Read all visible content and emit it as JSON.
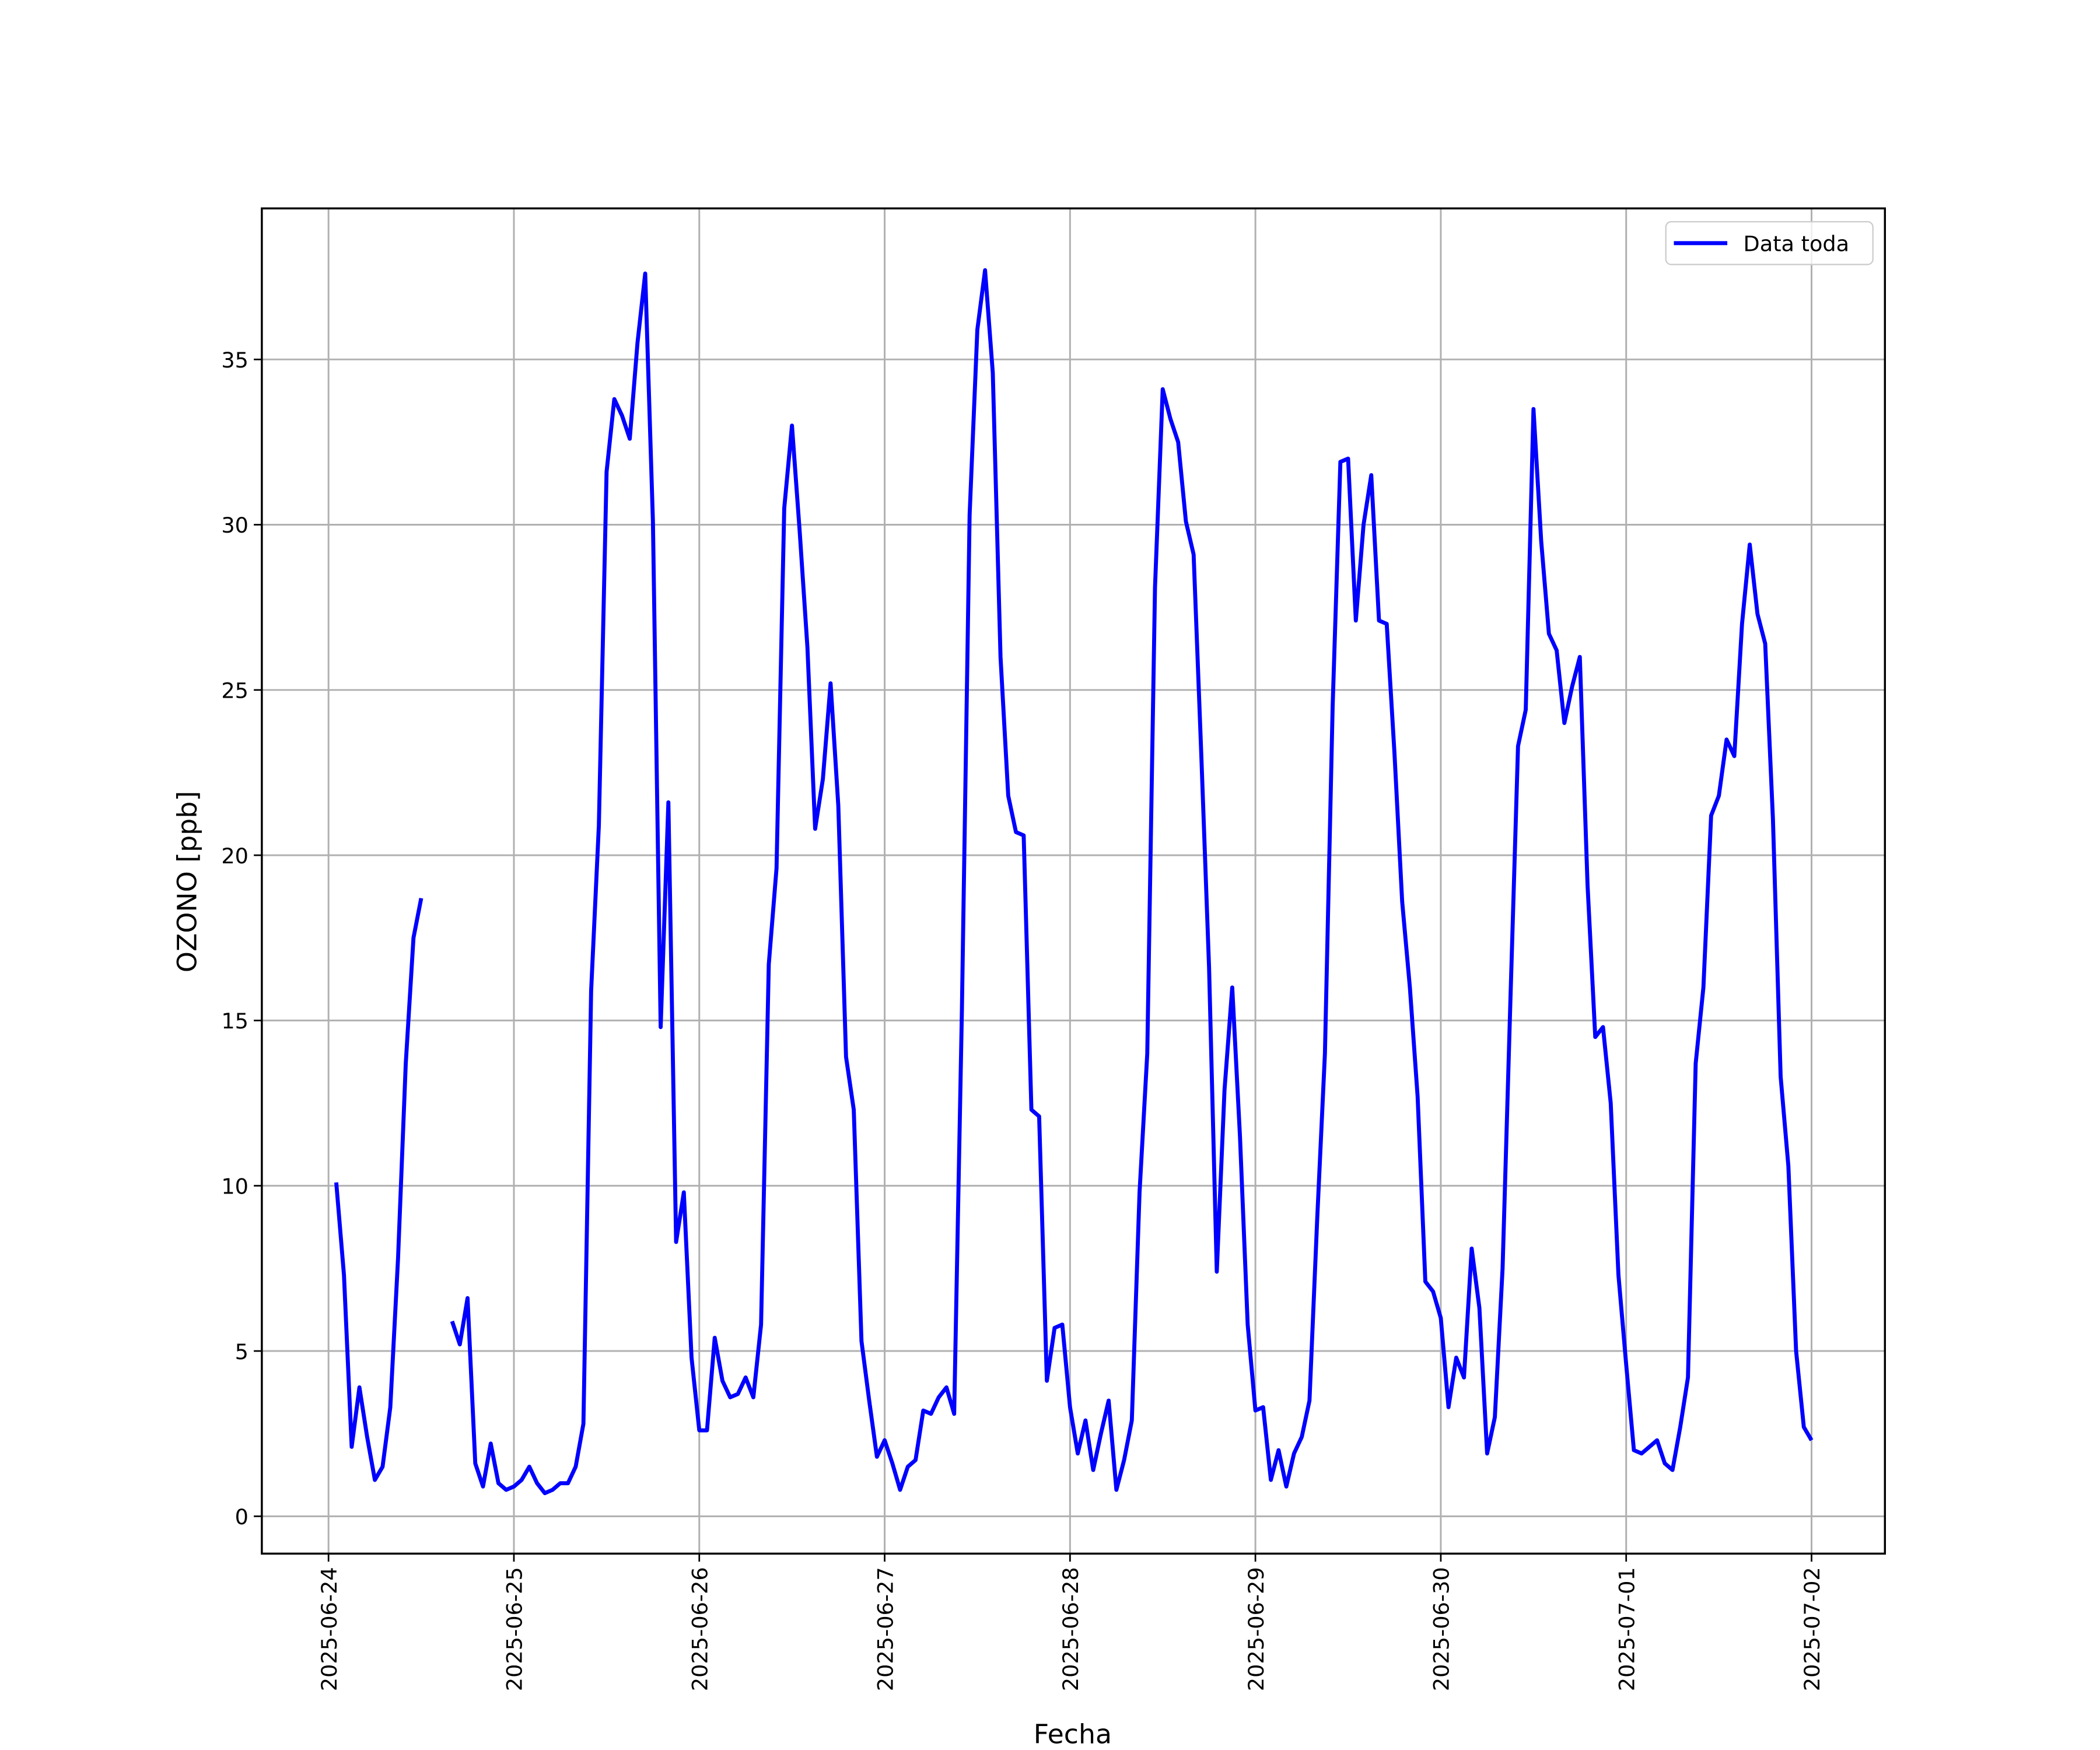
{
  "chart_data": {
    "type": "line",
    "xlabel": "Fecha",
    "ylabel": "OZONO [ppb]",
    "x": [
      "2025-06-24 01:00",
      "2025-06-24 02:00",
      "2025-06-24 03:00",
      "2025-06-24 04:00",
      "2025-06-24 05:00",
      "2025-06-24 06:00",
      "2025-06-24 07:00",
      "2025-06-24 08:00",
      "2025-06-24 09:00",
      "2025-06-24 10:00",
      "2025-06-24 11:00",
      "2025-06-24 12:00",
      "2025-06-24 13:00",
      "2025-06-24 14:00",
      "2025-06-24 15:00",
      "2025-06-24 16:00",
      "2025-06-24 17:00",
      "2025-06-24 18:00",
      "2025-06-24 19:00",
      "2025-06-24 20:00",
      "2025-06-24 21:00",
      "2025-06-24 22:00",
      "2025-06-24 23:00",
      "2025-06-25 00:00",
      "2025-06-25 01:00",
      "2025-06-25 02:00",
      "2025-06-25 03:00",
      "2025-06-25 04:00",
      "2025-06-25 05:00",
      "2025-06-25 06:00",
      "2025-06-25 07:00",
      "2025-06-25 08:00",
      "2025-06-25 09:00",
      "2025-06-25 10:00",
      "2025-06-25 11:00",
      "2025-06-25 12:00",
      "2025-06-25 13:00",
      "2025-06-25 14:00",
      "2025-06-25 15:00",
      "2025-06-25 16:00",
      "2025-06-25 17:00",
      "2025-06-25 18:00",
      "2025-06-25 19:00",
      "2025-06-25 20:00",
      "2025-06-25 21:00",
      "2025-06-25 22:00",
      "2025-06-25 23:00",
      "2025-06-26 00:00",
      "2025-06-26 01:00",
      "2025-06-26 02:00",
      "2025-06-26 03:00",
      "2025-06-26 04:00",
      "2025-06-26 05:00",
      "2025-06-26 06:00",
      "2025-06-26 07:00",
      "2025-06-26 08:00",
      "2025-06-26 09:00",
      "2025-06-26 10:00",
      "2025-06-26 11:00",
      "2025-06-26 12:00",
      "2025-06-26 13:00",
      "2025-06-26 14:00",
      "2025-06-26 15:00",
      "2025-06-26 16:00",
      "2025-06-26 17:00",
      "2025-06-26 18:00",
      "2025-06-26 19:00",
      "2025-06-26 20:00",
      "2025-06-26 21:00",
      "2025-06-26 22:00",
      "2025-06-26 23:00",
      "2025-06-27 00:00",
      "2025-06-27 01:00",
      "2025-06-27 02:00",
      "2025-06-27 03:00",
      "2025-06-27 04:00",
      "2025-06-27 05:00",
      "2025-06-27 06:00",
      "2025-06-27 07:00",
      "2025-06-27 08:00",
      "2025-06-27 09:00",
      "2025-06-27 10:00",
      "2025-06-27 11:00",
      "2025-06-27 12:00",
      "2025-06-27 13:00",
      "2025-06-27 14:00",
      "2025-06-27 15:00",
      "2025-06-27 16:00",
      "2025-06-27 17:00",
      "2025-06-27 18:00",
      "2025-06-27 19:00",
      "2025-06-27 20:00",
      "2025-06-27 21:00",
      "2025-06-27 22:00",
      "2025-06-27 23:00",
      "2025-06-28 00:00",
      "2025-06-28 01:00",
      "2025-06-28 02:00",
      "2025-06-28 03:00",
      "2025-06-28 04:00",
      "2025-06-28 05:00",
      "2025-06-28 06:00",
      "2025-06-28 07:00",
      "2025-06-28 08:00",
      "2025-06-28 09:00",
      "2025-06-28 10:00",
      "2025-06-28 11:00",
      "2025-06-28 12:00",
      "2025-06-28 13:00",
      "2025-06-28 14:00",
      "2025-06-28 15:00",
      "2025-06-28 16:00",
      "2025-06-28 17:00",
      "2025-06-28 18:00",
      "2025-06-28 19:00",
      "2025-06-28 20:00",
      "2025-06-28 21:00",
      "2025-06-28 22:00",
      "2025-06-28 23:00",
      "2025-06-29 00:00",
      "2025-06-29 01:00",
      "2025-06-29 02:00",
      "2025-06-29 03:00",
      "2025-06-29 04:00",
      "2025-06-29 05:00",
      "2025-06-29 06:00",
      "2025-06-29 07:00",
      "2025-06-29 08:00",
      "2025-06-29 09:00",
      "2025-06-29 10:00",
      "2025-06-29 11:00",
      "2025-06-29 12:00",
      "2025-06-29 13:00",
      "2025-06-29 14:00",
      "2025-06-29 15:00",
      "2025-06-29 16:00",
      "2025-06-29 17:00",
      "2025-06-29 18:00",
      "2025-06-29 19:00",
      "2025-06-29 20:00",
      "2025-06-29 21:00",
      "2025-06-29 22:00",
      "2025-06-29 23:00",
      "2025-06-30 00:00",
      "2025-06-30 01:00",
      "2025-06-30 02:00",
      "2025-06-30 03:00",
      "2025-06-30 04:00",
      "2025-06-30 05:00",
      "2025-06-30 06:00",
      "2025-06-30 07:00",
      "2025-06-30 08:00",
      "2025-06-30 09:00",
      "2025-06-30 10:00",
      "2025-06-30 11:00",
      "2025-06-30 12:00",
      "2025-06-30 13:00",
      "2025-06-30 14:00",
      "2025-06-30 15:00",
      "2025-06-30 16:00",
      "2025-06-30 17:00",
      "2025-06-30 18:00",
      "2025-06-30 19:00",
      "2025-06-30 20:00",
      "2025-06-30 21:00",
      "2025-06-30 22:00",
      "2025-06-30 23:00",
      "2025-07-01 00:00",
      "2025-07-01 01:00",
      "2025-07-01 02:00",
      "2025-07-01 03:00",
      "2025-07-01 04:00",
      "2025-07-01 05:00",
      "2025-07-01 06:00",
      "2025-07-01 07:00",
      "2025-07-01 08:00",
      "2025-07-01 09:00",
      "2025-07-01 10:00",
      "2025-07-01 11:00",
      "2025-07-01 12:00",
      "2025-07-01 13:00",
      "2025-07-01 14:00",
      "2025-07-01 15:00",
      "2025-07-01 16:00",
      "2025-07-01 17:00",
      "2025-07-01 18:00",
      "2025-07-01 19:00",
      "2025-07-01 20:00",
      "2025-07-01 21:00",
      "2025-07-01 22:00",
      "2025-07-01 23:00",
      "2025-07-02 00:00"
    ],
    "series": [
      {
        "name": "Data toda",
        "color": "#0000ff",
        "values": [
          10.1,
          7.3,
          2.1,
          3.9,
          2.4,
          1.1,
          1.5,
          3.3,
          7.8,
          13.7,
          17.5,
          18.7,
          null,
          null,
          null,
          5.9,
          5.2,
          6.6,
          1.6,
          0.9,
          2.2,
          1.0,
          0.8,
          0.9,
          1.1,
          1.5,
          1.0,
          0.7,
          0.8,
          1.0,
          1.0,
          1.5,
          2.8,
          15.9,
          20.9,
          31.6,
          33.8,
          33.3,
          32.6,
          35.5,
          37.6,
          30.1,
          14.8,
          21.6,
          8.3,
          9.8,
          4.8,
          2.6,
          2.6,
          5.4,
          4.1,
          3.6,
          3.7,
          4.2,
          3.6,
          5.8,
          16.7,
          19.6,
          30.5,
          33.0,
          29.8,
          26.3,
          20.8,
          22.3,
          25.2,
          21.5,
          13.9,
          12.3,
          5.3,
          3.5,
          1.8,
          2.3,
          1.6,
          0.8,
          1.5,
          1.7,
          3.2,
          3.1,
          3.6,
          3.9,
          3.1,
          15.3,
          30.3,
          35.9,
          37.7,
          34.6,
          26.0,
          21.8,
          20.7,
          20.6,
          12.3,
          12.1,
          4.1,
          5.7,
          5.8,
          3.3,
          1.9,
          2.9,
          1.4,
          2.5,
          3.5,
          0.8,
          1.7,
          2.9,
          9.8,
          14.0,
          28.1,
          34.1,
          33.2,
          32.5,
          30.1,
          29.1,
          23.0,
          16.6,
          7.4,
          12.9,
          16.0,
          11.5,
          5.8,
          3.2,
          3.3,
          1.1,
          2.0,
          0.9,
          1.9,
          2.4,
          3.5,
          9.0,
          14.0,
          24.5,
          31.9,
          32.0,
          27.1,
          30.0,
          31.5,
          27.1,
          27.0,
          23.1,
          18.6,
          16.0,
          12.7,
          7.1,
          6.8,
          6.0,
          3.3,
          4.8,
          4.2,
          8.1,
          6.3,
          1.9,
          3.0,
          7.5,
          15.5,
          23.3,
          24.4,
          33.5,
          29.5,
          26.7,
          26.2,
          24.0,
          25.1,
          26.0,
          19.1,
          14.5,
          14.8,
          12.5,
          7.3,
          4.6,
          2.0,
          1.9,
          2.1,
          2.3,
          1.6,
          1.4,
          2.7,
          4.2,
          13.7,
          16.0,
          21.2,
          21.8,
          23.5,
          23.0,
          27.0,
          29.4,
          27.3,
          26.4,
          21.1,
          13.3,
          10.6,
          5.0,
          2.7,
          2.3
        ]
      }
    ],
    "xlim": [
      "2025-06-23 15:22",
      "2025-07-02 09:30"
    ],
    "xticks": [
      "2025-06-24",
      "2025-06-25",
      "2025-06-26",
      "2025-06-27",
      "2025-06-28",
      "2025-06-29",
      "2025-06-30",
      "2025-07-01",
      "2025-07-02"
    ],
    "ylim": [
      -1.13,
      39.57
    ],
    "yticks": [
      0,
      5,
      10,
      15,
      20,
      25,
      30,
      35
    ],
    "grid": true,
    "legend": "upper right"
  }
}
